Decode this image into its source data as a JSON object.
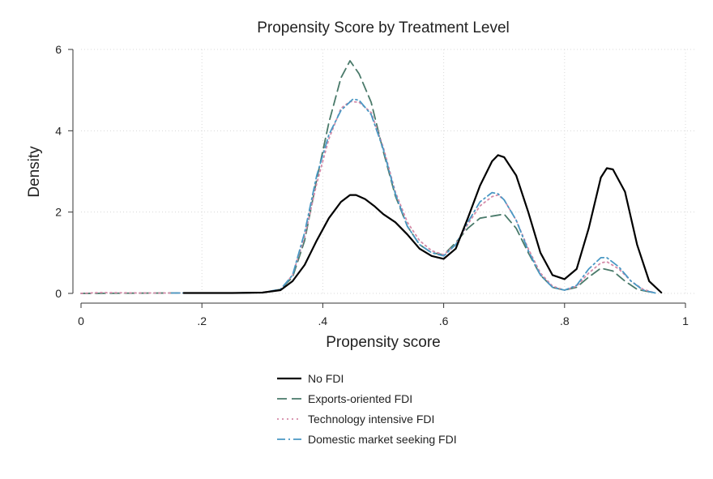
{
  "chart_data": {
    "type": "line",
    "title": "Propensity Score by Treatment Level",
    "xlabel": "Propensity score",
    "ylabel": "Density",
    "xlim": [
      0,
      1
    ],
    "ylim": [
      0,
      6
    ],
    "x_ticks": [
      0,
      0.2,
      0.4,
      0.6,
      0.8,
      1
    ],
    "x_tick_labels": [
      "0",
      ".2",
      ".4",
      ".6",
      ".8",
      "1"
    ],
    "y_ticks": [
      0,
      2,
      4,
      6
    ],
    "y_tick_labels": [
      "0",
      "2",
      "4",
      "6"
    ],
    "grid": true,
    "legend_position": "bottom",
    "series": [
      {
        "name": "No FDI",
        "color": "#000000",
        "dash": "solid",
        "points": [
          [
            0.17,
            0.01
          ],
          [
            0.25,
            0.01
          ],
          [
            0.3,
            0.02
          ],
          [
            0.33,
            0.08
          ],
          [
            0.35,
            0.3
          ],
          [
            0.37,
            0.7
          ],
          [
            0.39,
            1.3
          ],
          [
            0.41,
            1.85
          ],
          [
            0.43,
            2.25
          ],
          [
            0.445,
            2.42
          ],
          [
            0.455,
            2.42
          ],
          [
            0.47,
            2.32
          ],
          [
            0.485,
            2.15
          ],
          [
            0.5,
            1.95
          ],
          [
            0.52,
            1.75
          ],
          [
            0.54,
            1.45
          ],
          [
            0.56,
            1.1
          ],
          [
            0.58,
            0.92
          ],
          [
            0.6,
            0.85
          ],
          [
            0.62,
            1.1
          ],
          [
            0.64,
            1.85
          ],
          [
            0.66,
            2.65
          ],
          [
            0.68,
            3.25
          ],
          [
            0.69,
            3.4
          ],
          [
            0.7,
            3.35
          ],
          [
            0.72,
            2.9
          ],
          [
            0.74,
            2.0
          ],
          [
            0.76,
            1.0
          ],
          [
            0.78,
            0.45
          ],
          [
            0.8,
            0.35
          ],
          [
            0.82,
            0.6
          ],
          [
            0.84,
            1.6
          ],
          [
            0.86,
            2.85
          ],
          [
            0.87,
            3.08
          ],
          [
            0.88,
            3.05
          ],
          [
            0.9,
            2.5
          ],
          [
            0.92,
            1.2
          ],
          [
            0.94,
            0.3
          ],
          [
            0.96,
            0.02
          ]
        ]
      },
      {
        "name": "Exports-oriented FDI",
        "color": "#4a7a6a",
        "dash": "long-dash",
        "points": [
          [
            0.0,
            0.0
          ],
          [
            0.15,
            0.01
          ],
          [
            0.25,
            0.01
          ],
          [
            0.3,
            0.02
          ],
          [
            0.33,
            0.1
          ],
          [
            0.35,
            0.4
          ],
          [
            0.37,
            1.3
          ],
          [
            0.39,
            2.8
          ],
          [
            0.41,
            4.2
          ],
          [
            0.43,
            5.3
          ],
          [
            0.445,
            5.72
          ],
          [
            0.46,
            5.4
          ],
          [
            0.48,
            4.7
          ],
          [
            0.5,
            3.5
          ],
          [
            0.52,
            2.4
          ],
          [
            0.54,
            1.65
          ],
          [
            0.56,
            1.2
          ],
          [
            0.58,
            1.0
          ],
          [
            0.6,
            0.95
          ],
          [
            0.62,
            1.25
          ],
          [
            0.64,
            1.6
          ],
          [
            0.66,
            1.85
          ],
          [
            0.68,
            1.9
          ],
          [
            0.7,
            1.95
          ],
          [
            0.72,
            1.6
          ],
          [
            0.74,
            1.0
          ],
          [
            0.76,
            0.45
          ],
          [
            0.78,
            0.15
          ],
          [
            0.8,
            0.08
          ],
          [
            0.82,
            0.15
          ],
          [
            0.84,
            0.4
          ],
          [
            0.86,
            0.62
          ],
          [
            0.88,
            0.55
          ],
          [
            0.9,
            0.3
          ],
          [
            0.92,
            0.1
          ],
          [
            0.95,
            0.01
          ]
        ]
      },
      {
        "name": "Technology intensive FDI",
        "color": "#d48aa8",
        "dash": "dot",
        "points": [
          [
            0.0,
            0.0
          ],
          [
            0.03,
            0.02
          ],
          [
            0.1,
            0.01
          ],
          [
            0.25,
            0.01
          ],
          [
            0.3,
            0.02
          ],
          [
            0.33,
            0.1
          ],
          [
            0.35,
            0.45
          ],
          [
            0.37,
            1.4
          ],
          [
            0.39,
            2.7
          ],
          [
            0.41,
            3.8
          ],
          [
            0.43,
            4.55
          ],
          [
            0.445,
            4.72
          ],
          [
            0.46,
            4.7
          ],
          [
            0.48,
            4.45
          ],
          [
            0.5,
            3.6
          ],
          [
            0.52,
            2.5
          ],
          [
            0.54,
            1.75
          ],
          [
            0.56,
            1.3
          ],
          [
            0.58,
            1.05
          ],
          [
            0.6,
            0.95
          ],
          [
            0.62,
            1.2
          ],
          [
            0.64,
            1.7
          ],
          [
            0.66,
            2.15
          ],
          [
            0.68,
            2.38
          ],
          [
            0.69,
            2.42
          ],
          [
            0.7,
            2.3
          ],
          [
            0.72,
            1.8
          ],
          [
            0.74,
            1.1
          ],
          [
            0.76,
            0.5
          ],
          [
            0.78,
            0.18
          ],
          [
            0.8,
            0.08
          ],
          [
            0.82,
            0.18
          ],
          [
            0.84,
            0.5
          ],
          [
            0.86,
            0.75
          ],
          [
            0.87,
            0.78
          ],
          [
            0.89,
            0.6
          ],
          [
            0.91,
            0.3
          ],
          [
            0.93,
            0.1
          ],
          [
            0.95,
            0.01
          ]
        ]
      },
      {
        "name": "Domestic market seeking FDI",
        "color": "#4a98c4",
        "dash": "dash-dot",
        "points": [
          [
            0.15,
            0.01
          ],
          [
            0.25,
            0.01
          ],
          [
            0.3,
            0.02
          ],
          [
            0.33,
            0.1
          ],
          [
            0.35,
            0.45
          ],
          [
            0.37,
            1.5
          ],
          [
            0.39,
            2.9
          ],
          [
            0.41,
            3.9
          ],
          [
            0.43,
            4.5
          ],
          [
            0.45,
            4.78
          ],
          [
            0.46,
            4.75
          ],
          [
            0.48,
            4.4
          ],
          [
            0.5,
            3.55
          ],
          [
            0.52,
            2.45
          ],
          [
            0.54,
            1.65
          ],
          [
            0.56,
            1.2
          ],
          [
            0.58,
            1.0
          ],
          [
            0.6,
            0.92
          ],
          [
            0.62,
            1.2
          ],
          [
            0.64,
            1.75
          ],
          [
            0.66,
            2.25
          ],
          [
            0.68,
            2.48
          ],
          [
            0.69,
            2.45
          ],
          [
            0.7,
            2.3
          ],
          [
            0.72,
            1.8
          ],
          [
            0.74,
            1.05
          ],
          [
            0.76,
            0.45
          ],
          [
            0.78,
            0.15
          ],
          [
            0.8,
            0.08
          ],
          [
            0.82,
            0.2
          ],
          [
            0.84,
            0.6
          ],
          [
            0.86,
            0.88
          ],
          [
            0.87,
            0.88
          ],
          [
            0.89,
            0.65
          ],
          [
            0.91,
            0.3
          ],
          [
            0.93,
            0.08
          ],
          [
            0.95,
            0.01
          ]
        ]
      }
    ]
  }
}
